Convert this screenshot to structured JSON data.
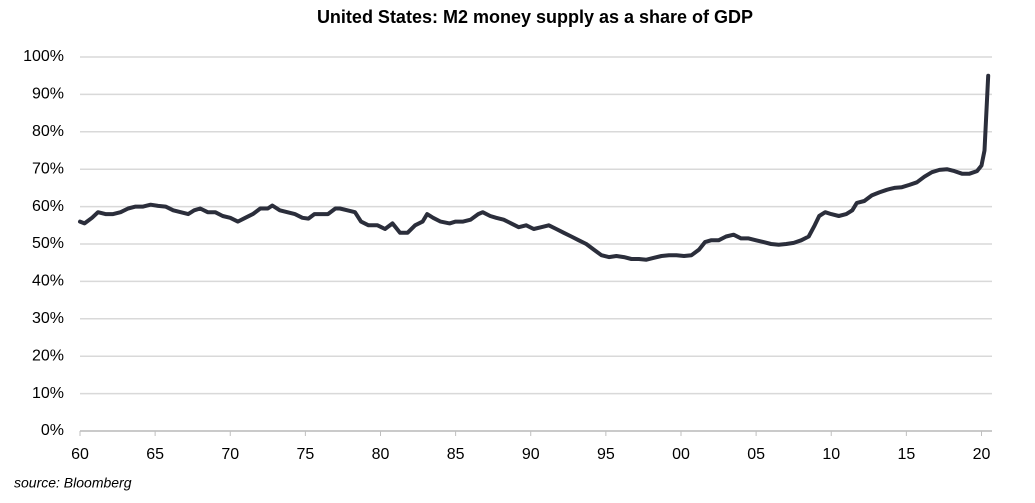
{
  "chart_data": {
    "type": "line",
    "title": "United States: M2 money supply as a share of GDP",
    "source": "source: Bloomberg",
    "color": "#2b2e3b",
    "grid": true,
    "xlim": [
      1960,
      2020.5
    ],
    "ylim": [
      0,
      100
    ],
    "xticks": [
      {
        "value": 1960,
        "label": "60"
      },
      {
        "value": 1965,
        "label": "65"
      },
      {
        "value": 1970,
        "label": "70"
      },
      {
        "value": 1975,
        "label": "75"
      },
      {
        "value": 1980,
        "label": "80"
      },
      {
        "value": 1985,
        "label": "85"
      },
      {
        "value": 1990,
        "label": "90"
      },
      {
        "value": 1995,
        "label": "95"
      },
      {
        "value": 2000,
        "label": "00"
      },
      {
        "value": 2005,
        "label": "05"
      },
      {
        "value": 2010,
        "label": "10"
      },
      {
        "value": 2015,
        "label": "15"
      },
      {
        "value": 2020,
        "label": "20"
      }
    ],
    "yticks": [
      {
        "value": 0,
        "label": "0%"
      },
      {
        "value": 10,
        "label": "10%"
      },
      {
        "value": 20,
        "label": "20%"
      },
      {
        "value": 30,
        "label": "30%"
      },
      {
        "value": 40,
        "label": "40%"
      },
      {
        "value": 50,
        "label": "50%"
      },
      {
        "value": 60,
        "label": "60%"
      },
      {
        "value": 70,
        "label": "70%"
      },
      {
        "value": 80,
        "label": "80%"
      },
      {
        "value": 90,
        "label": "90%"
      },
      {
        "value": 100,
        "label": "100%"
      }
    ],
    "x": [
      1960,
      1960.3,
      1960.8,
      1961.2,
      1961.7,
      1962.2,
      1962.7,
      1963.2,
      1963.7,
      1964.2,
      1964.7,
      1965.2,
      1965.7,
      1966.2,
      1966.7,
      1967.2,
      1967.6,
      1968.0,
      1968.5,
      1969.0,
      1969.5,
      1970.0,
      1970.5,
      1971.0,
      1971.5,
      1972.0,
      1972.5,
      1972.8,
      1973.3,
      1973.8,
      1974.3,
      1974.8,
      1975.2,
      1975.6,
      1976.0,
      1976.5,
      1977.0,
      1977.3,
      1977.8,
      1978.3,
      1978.7,
      1979.2,
      1979.8,
      1980.3,
      1980.8,
      1981.3,
      1981.8,
      1982.3,
      1982.8,
      1983.1,
      1983.5,
      1984.0,
      1984.6,
      1985.0,
      1985.5,
      1986.0,
      1986.5,
      1986.8,
      1987.3,
      1987.7,
      1988.2,
      1988.7,
      1989.2,
      1989.7,
      1990.2,
      1990.7,
      1991.2,
      1991.7,
      1992.2,
      1992.7,
      1993.2,
      1993.7,
      1994.2,
      1994.7,
      1995.2,
      1995.7,
      1996.2,
      1996.7,
      1997.2,
      1997.7,
      1998.2,
      1998.7,
      1999.2,
      1999.7,
      2000.2,
      2000.7,
      2001.2,
      2001.6,
      2002.0,
      2002.5,
      2003.0,
      2003.5,
      2004.0,
      2004.5,
      2005.0,
      2005.5,
      2006.0,
      2006.5,
      2007.0,
      2007.5,
      2008.0,
      2008.5,
      2008.9,
      2009.2,
      2009.6,
      2010.0,
      2010.5,
      2011.0,
      2011.4,
      2011.7,
      2012.2,
      2012.7,
      2013.2,
      2013.7,
      2014.2,
      2014.7,
      2015.2,
      2015.7,
      2016.2,
      2016.7,
      2017.2,
      2017.7,
      2018.2,
      2018.7,
      2019.2,
      2019.7,
      2020.0,
      2020.2,
      2020.45
    ],
    "values": [
      56,
      55.5,
      57,
      58.5,
      58,
      58,
      58.5,
      59.5,
      60,
      60,
      60.5,
      60.2,
      60,
      59,
      58.5,
      58,
      59,
      59.5,
      58.5,
      58.5,
      57.5,
      57,
      56,
      57,
      58,
      59.5,
      59.5,
      60.3,
      59,
      58.5,
      58,
      57,
      56.8,
      58,
      58,
      58,
      59.5,
      59.5,
      59,
      58.5,
      56,
      55,
      55,
      54,
      55.5,
      53,
      53,
      55,
      56,
      58,
      57,
      56,
      55.5,
      56,
      56,
      56.5,
      58,
      58.5,
      57.5,
      57,
      56.5,
      55.5,
      54.5,
      55,
      54,
      54.5,
      55,
      54,
      53,
      52,
      51,
      50,
      48.5,
      47,
      46.5,
      46.8,
      46.5,
      46,
      46,
      45.8,
      46.3,
      46.8,
      47,
      47,
      46.8,
      47,
      48.5,
      50.5,
      51,
      51,
      52,
      52.5,
      51.5,
      51.5,
      51,
      50.5,
      50,
      49.8,
      50,
      50.3,
      51,
      52,
      55,
      57.5,
      58.5,
      58,
      57.5,
      58,
      59,
      61,
      61.5,
      63,
      63.8,
      64.5,
      65,
      65.2,
      65.8,
      66.5,
      68,
      69.2,
      69.8,
      70,
      69.5,
      68.8,
      68.8,
      69.5,
      71,
      75,
      95
    ]
  }
}
